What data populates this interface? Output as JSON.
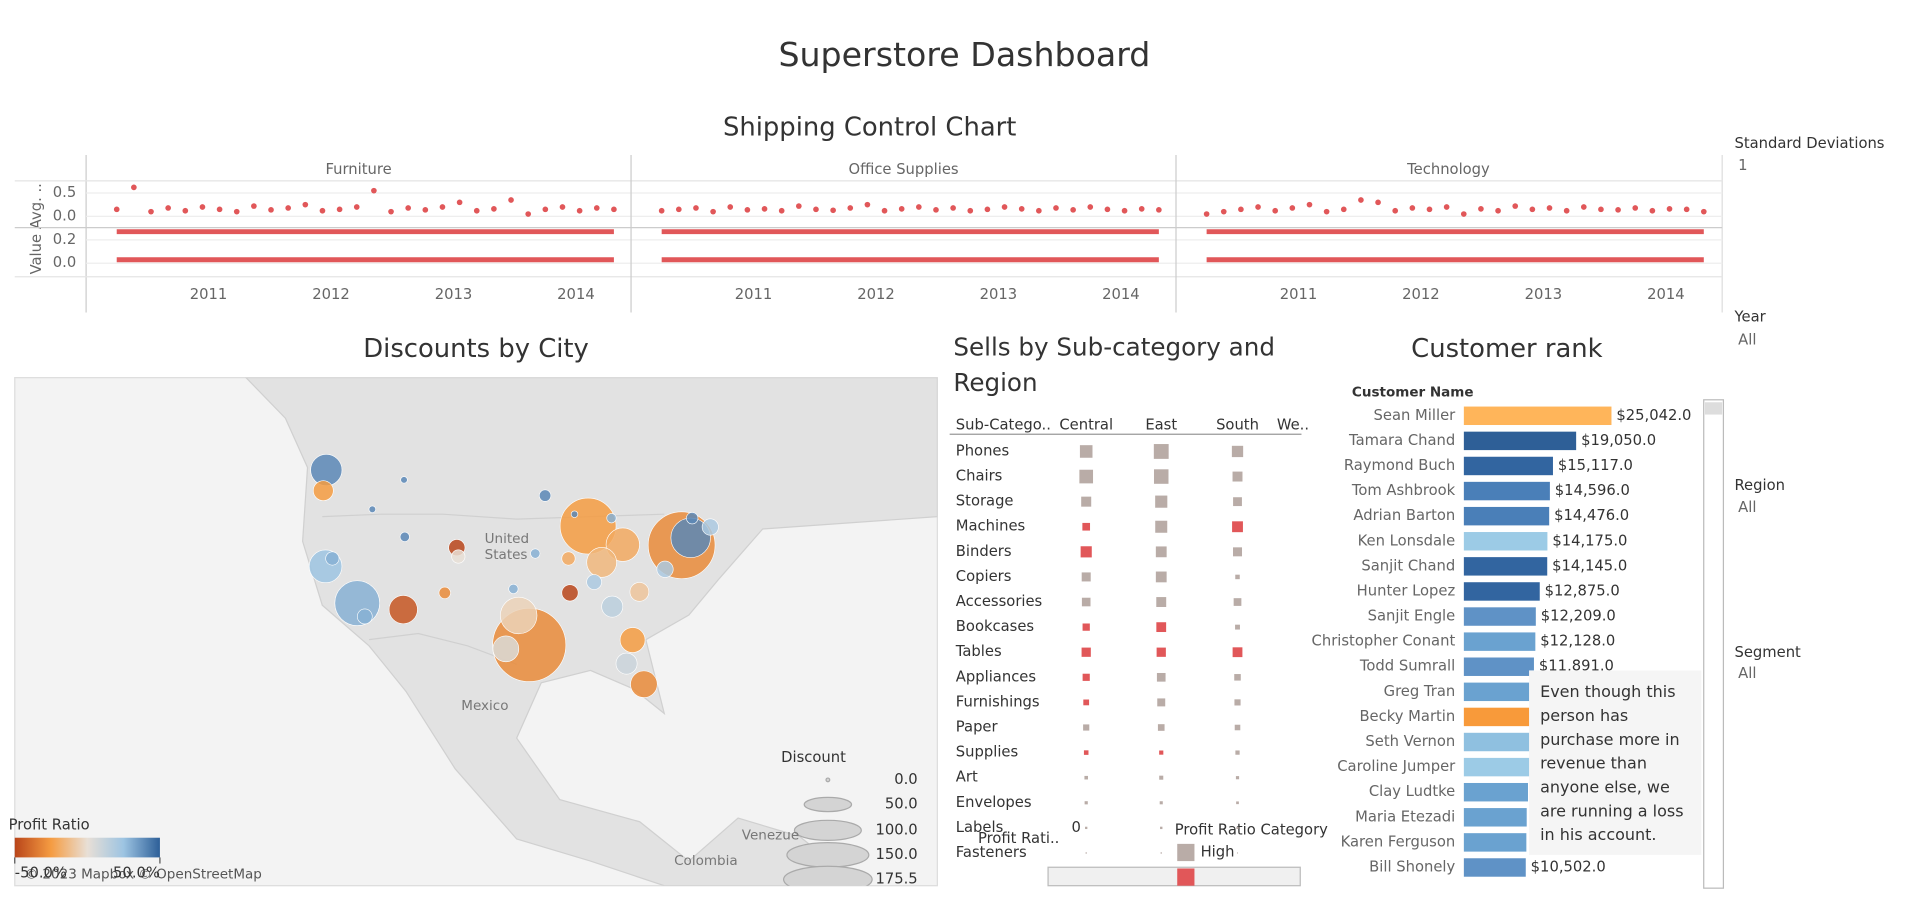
{
  "title": "Superstore Dashboard",
  "shipping": {
    "title": "Shipping Control Chart",
    "y_label": "Value Avg. ..",
    "xlim": [
      2010,
      2014.45
    ],
    "xticks": [
      2011,
      2012,
      2013,
      2014
    ],
    "top_ylim": [
      -0.24,
      0.76
    ],
    "top_yticks": [
      0.5,
      {
        "value": 0,
        "label": "0.0"
      }
    ],
    "bottom_ylim": [
      -0.116,
      0.295
    ],
    "bottom_yticks": [
      0.2,
      {
        "value": 0,
        "label": "0.0"
      }
    ],
    "color": "#e15759",
    "x": [
      2010.25,
      2010.39,
      2010.53,
      2010.67,
      2010.81,
      2010.95,
      2011.09,
      2011.23,
      2011.37,
      2011.51,
      2011.65,
      2011.79,
      2011.93,
      2012.07,
      2012.21,
      2012.35,
      2012.49,
      2012.63,
      2012.77,
      2012.91,
      2013.05,
      2013.19,
      2013.33,
      2013.47,
      2013.61,
      2013.75,
      2013.89,
      2014.03,
      2014.17,
      2014.31
    ],
    "panels": [
      {
        "name": "Furniture",
        "values": [
          0.15,
          0.62,
          0.1,
          0.18,
          0.12,
          0.2,
          0.15,
          0.1,
          0.22,
          0.14,
          0.18,
          0.25,
          0.12,
          0.15,
          0.2,
          0.55,
          0.1,
          0.18,
          0.14,
          0.2,
          0.3,
          0.12,
          0.16,
          0.35,
          0.05,
          0.15,
          0.2,
          0.12,
          0.18,
          0.15
        ]
      },
      {
        "name": "Office Supplies",
        "values": [
          0.12,
          0.15,
          0.18,
          0.1,
          0.2,
          0.14,
          0.16,
          0.12,
          0.22,
          0.15,
          0.13,
          0.18,
          0.25,
          0.12,
          0.16,
          0.2,
          0.14,
          0.18,
          0.12,
          0.15,
          0.2,
          0.16,
          0.12,
          0.18,
          0.14,
          0.2,
          0.15,
          0.12,
          0.16,
          0.14
        ]
      },
      {
        "name": "Technology",
        "values": [
          0.05,
          0.1,
          0.15,
          0.2,
          0.12,
          0.18,
          0.25,
          0.1,
          0.15,
          0.35,
          0.3,
          0.12,
          0.18,
          0.15,
          0.2,
          0.05,
          0.16,
          0.12,
          0.22,
          0.15,
          0.18,
          0.12,
          0.2,
          0.15,
          0.14,
          0.18,
          0.12,
          0.16,
          0.15,
          0.1
        ]
      }
    ],
    "control_lines": [
      0.27,
      0.03
    ]
  },
  "map": {
    "title": "Discounts by City",
    "places": [
      "United",
      "States",
      "Mexico",
      "Venezue",
      "Colombia"
    ],
    "attribution": "© 2023 Mapbox © OpenStreetMap",
    "lon_lim": [
      -163.6,
      -41.3
    ],
    "lat_lim": [
      5.3,
      57
    ],
    "bubbles": [
      {
        "lon": -75.2,
        "lat": 39.95,
        "discount": 100,
        "profit_ratio": -0.3
      },
      {
        "lon": -95.4,
        "lat": 29.8,
        "discount": 120,
        "profit_ratio": -0.3
      },
      {
        "lon": -87.6,
        "lat": 41.9,
        "discount": 70,
        "profit_ratio": -0.25
      },
      {
        "lon": -118.2,
        "lat": 34.05,
        "discount": 45,
        "profit_ratio": 0.3
      },
      {
        "lon": -96.8,
        "lat": 32.8,
        "discount": 30,
        "profit_ratio": -0.05
      },
      {
        "lon": -74.0,
        "lat": 40.7,
        "discount": 35,
        "profit_ratio": 0.4
      },
      {
        "lon": -122.3,
        "lat": 47.6,
        "discount": 22,
        "profit_ratio": 0.4
      },
      {
        "lon": -122.4,
        "lat": 37.8,
        "discount": 24,
        "profit_ratio": 0.25
      },
      {
        "lon": -83.0,
        "lat": 40.0,
        "discount": 25,
        "profit_ratio": -0.2
      },
      {
        "lon": -112.1,
        "lat": 33.4,
        "discount": 18,
        "profit_ratio": -0.45
      },
      {
        "lon": -85.8,
        "lat": 38.2,
        "discount": 20,
        "profit_ratio": -0.15
      },
      {
        "lon": -81.7,
        "lat": 30.3,
        "discount": 14,
        "profit_ratio": -0.25
      },
      {
        "lon": -80.2,
        "lat": 25.8,
        "discount": 16,
        "profit_ratio": -0.3
      },
      {
        "lon": -82.5,
        "lat": 27.9,
        "discount": 10,
        "profit_ratio": 0.1
      },
      {
        "lon": -84.4,
        "lat": 33.7,
        "discount": 10,
        "profit_ratio": 0.15
      },
      {
        "lon": -98.5,
        "lat": 29.4,
        "discount": 15,
        "profit_ratio": 0.05
      },
      {
        "lon": -105.0,
        "lat": 39.7,
        "discount": 6,
        "profit_ratio": -0.5
      },
      {
        "lon": -104.8,
        "lat": 38.8,
        "discount": 4,
        "profit_ratio": 0.0
      },
      {
        "lon": -90.0,
        "lat": 35.1,
        "discount": 6,
        "profit_ratio": -0.5
      },
      {
        "lon": -86.8,
        "lat": 36.2,
        "discount": 5,
        "profit_ratio": 0.2
      },
      {
        "lon": -122.7,
        "lat": 45.5,
        "discount": 9,
        "profit_ratio": -0.25
      },
      {
        "lon": -121.5,
        "lat": 38.6,
        "discount": 4,
        "profit_ratio": 0.3
      },
      {
        "lon": -117.2,
        "lat": 32.7,
        "discount": 5,
        "profit_ratio": 0.3
      },
      {
        "lon": -71.4,
        "lat": 41.8,
        "discount": 6,
        "profit_ratio": 0.2
      },
      {
        "lon": -77.4,
        "lat": 37.5,
        "discount": 6,
        "profit_ratio": 0.2
      },
      {
        "lon": -80.8,
        "lat": 35.2,
        "discount": 8,
        "profit_ratio": -0.1
      },
      {
        "lon": -93.3,
        "lat": 45.0,
        "discount": 3,
        "profit_ratio": 0.4
      },
      {
        "lon": -111.9,
        "lat": 40.8,
        "discount": 2,
        "profit_ratio": 0.4
      },
      {
        "lon": -116.2,
        "lat": 43.6,
        "discount": 1,
        "profit_ratio": 0.4
      },
      {
        "lon": -97.5,
        "lat": 35.5,
        "discount": 2,
        "profit_ratio": 0.3
      },
      {
        "lon": -106.6,
        "lat": 35.1,
        "discount": 3,
        "profit_ratio": -0.3
      },
      {
        "lon": -73.8,
        "lat": 42.7,
        "discount": 3,
        "profit_ratio": 0.4
      },
      {
        "lon": -89.4,
        "lat": 43.1,
        "discount": 1,
        "profit_ratio": 0.4
      },
      {
        "lon": -84.5,
        "lat": 42.7,
        "discount": 2,
        "profit_ratio": 0.3
      },
      {
        "lon": -90.2,
        "lat": 38.6,
        "discount": 4,
        "profit_ratio": -0.2
      },
      {
        "lon": -94.6,
        "lat": 39.1,
        "discount": 2,
        "profit_ratio": 0.3
      },
      {
        "lon": -112.0,
        "lat": 46.6,
        "discount": 1,
        "profit_ratio": 0.4
      }
    ],
    "size_legend": {
      "title": "Discount",
      "ticks": [
        {
          "value": 0,
          "label": "0.0"
        },
        {
          "value": 50,
          "label": "50.0"
        },
        {
          "value": 100,
          "label": "100.0"
        },
        {
          "value": 150,
          "label": "150.0"
        },
        {
          "value": 175.5,
          "label": "175.5"
        }
      ]
    },
    "color_legend": {
      "title": "Profit Ratio",
      "colors": [
        "#b9451a",
        "#f59c42",
        "#e8dfd6",
        "#9dc4e2",
        "#2d5f98"
      ],
      "ticks": [
        {
          "value": -0.5,
          "label": "-50.0%"
        },
        {
          "value": 0.5,
          "label": "50.0%"
        }
      ]
    }
  },
  "sells": {
    "title": "Sells by Sub-category and Region",
    "headers": [
      "Sub-Catego..",
      "Central",
      "East",
      "South",
      "We.."
    ],
    "rows": [
      {
        "name": "Phones",
        "values": [
          72403,
          100615,
          58304
        ],
        "colors": [
          "#b9aca7",
          "#b9aca7",
          "#b9aca7"
        ]
      },
      {
        "name": "Chairs",
        "values": [
          85231,
          96248,
          45176
        ],
        "colors": [
          "#b9aca7",
          "#b9aca7",
          "#b9aca7"
        ]
      },
      {
        "name": "Storage",
        "values": [
          45930,
          67605,
          35768
        ],
        "colors": [
          "#b9aca7",
          "#b9aca7",
          "#b9aca7"
        ]
      },
      {
        "name": "Machines",
        "values": [
          26797,
          66106,
          53891
        ],
        "colors": [
          "#e15759",
          "#b9aca7",
          "#e15759"
        ]
      },
      {
        "name": "Binders",
        "values": [
          56923,
          53498,
          37030
        ],
        "colors": [
          "#e15759",
          "#b9aca7",
          "#b9aca7"
        ]
      },
      {
        "name": "Copiers",
        "values": [
          37259,
          53219,
          9300
        ],
        "colors": [
          "#b9aca7",
          "#b9aca7",
          "#b9aca7"
        ]
      },
      {
        "name": "Accessories",
        "values": [
          33956,
          45034,
          27277
        ],
        "colors": [
          "#b9aca7",
          "#b9aca7",
          "#b9aca7"
        ]
      },
      {
        "name": "Bookcases",
        "values": [
          24157,
          43819,
          10899
        ],
        "colors": [
          "#e15759",
          "#e15759",
          "#b9aca7"
        ]
      },
      {
        "name": "Tables",
        "values": [
          39155,
          39140,
          43916
        ],
        "colors": [
          "#e15759",
          "#e15759",
          "#e15759"
        ]
      },
      {
        "name": "Appliances",
        "values": [
          23582,
          34188,
          19525
        ],
        "colors": [
          "#e15759",
          "#b9aca7",
          "#b9aca7"
        ]
      },
      {
        "name": "Furnishings",
        "values": [
          15255,
          29072,
          17307
        ],
        "colors": [
          "#e15759",
          "#b9aca7",
          "#b9aca7"
        ]
      },
      {
        "name": "Paper",
        "values": [
          17492,
          20173,
          14151
        ],
        "colors": [
          "#b9aca7",
          "#b9aca7",
          "#b9aca7"
        ]
      },
      {
        "name": "Supplies",
        "values": [
          9467,
          7992,
          8319
        ],
        "colors": [
          "#e15759",
          "#e15759",
          "#b9aca7"
        ]
      },
      {
        "name": "Art",
        "values": [
          5765,
          7486,
          4656
        ],
        "colors": [
          "#b9aca7",
          "#b9aca7",
          "#b9aca7"
        ]
      },
      {
        "name": "Envelopes",
        "values": [
          4637,
          4376,
          3346
        ],
        "colors": [
          "#b9aca7",
          "#b9aca7",
          "#b9aca7"
        ]
      },
      {
        "name": "Labels",
        "values": [
          2451,
          2602,
          2353
        ],
        "colors": [
          "#b9aca7",
          "#b9aca7",
          "#b9aca7"
        ]
      },
      {
        "name": "Fasteners",
        "values": [
          778,
          819,
          503
        ],
        "colors": [
          "#b9aca7",
          "#b9aca7",
          "#b9aca7"
        ]
      }
    ],
    "filter_label": "Profit Rati..",
    "filter_value": 0,
    "legend": {
      "title": "Profit Ratio Category",
      "items": [
        {
          "label": "High",
          "color": "#b9aca7"
        },
        {
          "color": "#e15759"
        }
      ]
    }
  },
  "customers": {
    "title": "Customer rank",
    "header": "Customer Name",
    "rows": [
      {
        "name": "Sean Miller",
        "value": 25042,
        "value_label": "$25,042.0",
        "color": "#ffb55a"
      },
      {
        "name": "Tamara Chand",
        "value": 19050,
        "value_label": "$19,050.0",
        "color": "#2e5f97"
      },
      {
        "name": "Raymond Buch",
        "value": 15117,
        "value_label": "$15,117.0",
        "color": "#3265a0"
      },
      {
        "name": "Tom Ashbrook",
        "value": 14596,
        "value_label": "$14,596.0",
        "color": "#4a7fb8"
      },
      {
        "name": "Adrian Barton",
        "value": 14476,
        "value_label": "$14,476.0",
        "color": "#4a7fb8"
      },
      {
        "name": "Ken Lonsdale",
        "value": 14175,
        "value_label": "$14,175.0",
        "color": "#9ccbe6"
      },
      {
        "name": "Sanjit Chand",
        "value": 14145,
        "value_label": "$14,145.0",
        "color": "#3265a0"
      },
      {
        "name": "Hunter Lopez",
        "value": 12875,
        "value_label": "$12,875.0",
        "color": "#3265a0"
      },
      {
        "name": "Sanjit Engle",
        "value": 12209,
        "value_label": "$12,209.0",
        "color": "#5f92c6"
      },
      {
        "name": "Christopher Conant",
        "value": 12128,
        "value_label": "$12,128.0",
        "color": "#6aa2d0"
      },
      {
        "name": "Todd Sumrall",
        "value": 11891,
        "value_label": "$11,891.0",
        "color": "#5f92c6"
      },
      {
        "name": "Greg Tran",
        "value": 11820,
        "value_label": null,
        "color": "#6aa2d0"
      },
      {
        "name": "Becky Martin",
        "value": 11790,
        "value_label": null,
        "color": "#f89a3a"
      },
      {
        "name": "Seth Vernon",
        "value": 11470,
        "value_label": null,
        "color": "#8fc0e0"
      },
      {
        "name": "Caroline Jumper",
        "value": 11165,
        "value_label": null,
        "color": "#9ccbe6"
      },
      {
        "name": "Clay Ludtke",
        "value": 10880,
        "value_label": null,
        "color": "#6aa2d0"
      },
      {
        "name": "Maria Etezadi",
        "value": 10663,
        "value_label": null,
        "color": "#6aa2d0"
      },
      {
        "name": "Karen Ferguson",
        "value": 10604,
        "value_label": null,
        "color": "#6aa2d0"
      },
      {
        "name": "Bill Shonely",
        "value": 10502,
        "value_label": "$10,502.0",
        "color": "#5f92c6"
      }
    ],
    "note": [
      "Even though this",
      "person has",
      "purchase more in",
      "revenue than",
      "anyone else, we",
      "are running a loss",
      "in his account."
    ]
  },
  "filters": [
    {
      "label": "Standard Deviations",
      "value": "1"
    },
    {
      "label": "Year",
      "value": "All"
    },
    {
      "label": "Region",
      "value": "All"
    },
    {
      "label": "Segment",
      "value": "All"
    }
  ]
}
